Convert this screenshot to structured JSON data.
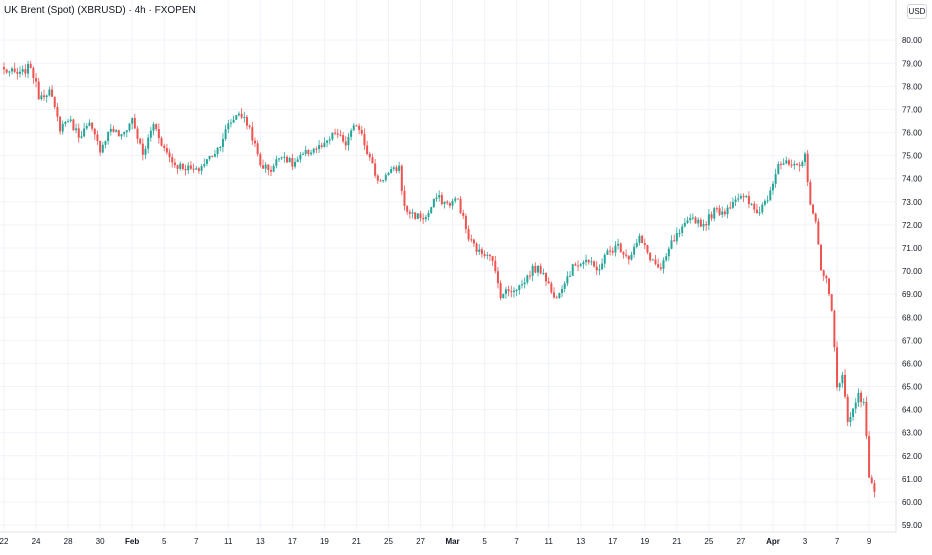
{
  "header": {
    "title": "UK Brent (Spot) (XBRUSD) · 4h · FXOPEN",
    "currency": "USD"
  },
  "colors": {
    "up": "#26a69a",
    "down": "#ef5350",
    "grid": "#f0f3fa",
    "axis_text": "#131722",
    "background": "#ffffff"
  },
  "chart_data": {
    "type": "candlestick",
    "symbol": "XBRUSD",
    "timeframe": "4h",
    "y_axis_side": "right",
    "ylim": [
      58.7,
      80.7
    ],
    "y_ticks": [
      "80.00",
      "79.00",
      "78.00",
      "77.00",
      "76.00",
      "75.00",
      "74.00",
      "73.00",
      "72.00",
      "71.00",
      "70.00",
      "69.00",
      "68.00",
      "67.00",
      "66.00",
      "65.00",
      "64.00",
      "63.00",
      "62.00",
      "61.00",
      "60.00",
      "59.00"
    ],
    "x_ticks": [
      {
        "label": "22",
        "bar": 0,
        "bold": false
      },
      {
        "label": "24",
        "bar": 12,
        "bold": false
      },
      {
        "label": "28",
        "bar": 24,
        "bold": false
      },
      {
        "label": "30",
        "bar": 36,
        "bold": false
      },
      {
        "label": "Feb",
        "bar": 48,
        "bold": true
      },
      {
        "label": "5",
        "bar": 60,
        "bold": false
      },
      {
        "label": "7",
        "bar": 72,
        "bold": false
      },
      {
        "label": "11",
        "bar": 84,
        "bold": false
      },
      {
        "label": "13",
        "bar": 96,
        "bold": false
      },
      {
        "label": "17",
        "bar": 108,
        "bold": false
      },
      {
        "label": "19",
        "bar": 120,
        "bold": false
      },
      {
        "label": "21",
        "bar": 132,
        "bold": false
      },
      {
        "label": "25",
        "bar": 144,
        "bold": false
      },
      {
        "label": "27",
        "bar": 156,
        "bold": false
      },
      {
        "label": "Mar",
        "bar": 168,
        "bold": true
      },
      {
        "label": "5",
        "bar": 180,
        "bold": false
      },
      {
        "label": "7",
        "bar": 192,
        "bold": false
      },
      {
        "label": "11",
        "bar": 204,
        "bold": false
      },
      {
        "label": "13",
        "bar": 216,
        "bold": false
      },
      {
        "label": "17",
        "bar": 228,
        "bold": false
      },
      {
        "label": "19",
        "bar": 240,
        "bold": false
      },
      {
        "label": "21",
        "bar": 252,
        "bold": false
      },
      {
        "label": "25",
        "bar": 264,
        "bold": false
      },
      {
        "label": "27",
        "bar": 276,
        "bold": false
      },
      {
        "label": "Apr",
        "bar": 288,
        "bold": true
      },
      {
        "label": "3",
        "bar": 300,
        "bold": false
      },
      {
        "label": "7",
        "bar": 312,
        "bold": false
      },
      {
        "label": "9",
        "bar": 324,
        "bold": false
      }
    ],
    "anchors": [
      [
        0,
        78.7
      ],
      [
        6,
        78.5
      ],
      [
        10,
        78.9
      ],
      [
        13,
        77.6
      ],
      [
        17,
        77.8
      ],
      [
        21,
        76.2
      ],
      [
        24,
        76.6
      ],
      [
        28,
        75.9
      ],
      [
        32,
        76.3
      ],
      [
        36,
        75.3
      ],
      [
        40,
        76.2
      ],
      [
        44,
        75.8
      ],
      [
        48,
        76.6
      ],
      [
        52,
        75.0
      ],
      [
        56,
        76.4
      ],
      [
        60,
        75.3
      ],
      [
        64,
        74.6
      ],
      [
        68,
        74.5
      ],
      [
        72,
        74.3
      ],
      [
        76,
        74.8
      ],
      [
        80,
        75.3
      ],
      [
        84,
        76.3
      ],
      [
        88,
        76.9
      ],
      [
        92,
        76.2
      ],
      [
        96,
        74.6
      ],
      [
        100,
        74.4
      ],
      [
        104,
        75.1
      ],
      [
        108,
        74.6
      ],
      [
        112,
        75.0
      ],
      [
        116,
        75.3
      ],
      [
        120,
        75.4
      ],
      [
        124,
        76.0
      ],
      [
        128,
        75.5
      ],
      [
        132,
        76.4
      ],
      [
        134,
        76.0
      ],
      [
        136,
        75.2
      ],
      [
        140,
        73.9
      ],
      [
        144,
        74.2
      ],
      [
        148,
        74.5
      ],
      [
        150,
        72.7
      ],
      [
        154,
        72.4
      ],
      [
        158,
        72.3
      ],
      [
        162,
        73.2
      ],
      [
        166,
        72.9
      ],
      [
        170,
        73.1
      ],
      [
        174,
        71.4
      ],
      [
        178,
        70.8
      ],
      [
        182,
        70.8
      ],
      [
        186,
        69.0
      ],
      [
        190,
        69.2
      ],
      [
        194,
        69.4
      ],
      [
        198,
        70.1
      ],
      [
        202,
        70.0
      ],
      [
        206,
        68.8
      ],
      [
        210,
        69.6
      ],
      [
        214,
        70.3
      ],
      [
        218,
        70.5
      ],
      [
        222,
        70.0
      ],
      [
        226,
        70.8
      ],
      [
        230,
        71.1
      ],
      [
        234,
        70.6
      ],
      [
        238,
        71.4
      ],
      [
        242,
        70.6
      ],
      [
        246,
        70.0
      ],
      [
        250,
        71.2
      ],
      [
        254,
        71.8
      ],
      [
        258,
        72.3
      ],
      [
        262,
        72.0
      ],
      [
        266,
        72.6
      ],
      [
        270,
        72.6
      ],
      [
        274,
        73.2
      ],
      [
        278,
        73.1
      ],
      [
        282,
        72.5
      ],
      [
        286,
        73.2
      ],
      [
        290,
        74.7
      ],
      [
        294,
        74.6
      ],
      [
        298,
        74.4
      ],
      [
        300,
        75.0
      ],
      [
        302,
        73.0
      ],
      [
        304,
        72.0
      ],
      [
        306,
        70.2
      ],
      [
        308,
        69.6
      ],
      [
        310,
        68.2
      ],
      [
        312,
        65.0
      ],
      [
        314,
        65.6
      ],
      [
        316,
        63.4
      ],
      [
        318,
        64.0
      ],
      [
        320,
        64.8
      ],
      [
        322,
        64.2
      ],
      [
        324,
        61.2
      ],
      [
        326,
        60.5
      ]
    ],
    "bar_count": 327
  }
}
